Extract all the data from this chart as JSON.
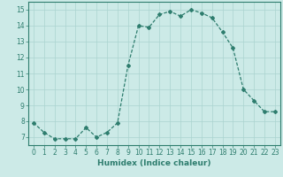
{
  "x": [
    0,
    1,
    2,
    3,
    4,
    5,
    6,
    7,
    8,
    9,
    10,
    11,
    12,
    13,
    14,
    15,
    16,
    17,
    18,
    19,
    20,
    21,
    22,
    23
  ],
  "y": [
    7.9,
    7.3,
    6.9,
    6.9,
    6.9,
    7.6,
    7.0,
    7.3,
    7.9,
    11.5,
    14.0,
    13.9,
    14.7,
    14.9,
    14.6,
    15.0,
    14.8,
    14.5,
    13.6,
    12.6,
    10.0,
    9.3,
    8.6,
    8.6
  ],
  "line_color": "#2e7d6e",
  "marker": "D",
  "marker_size": 2.0,
  "bg_color": "#cceae7",
  "grid_color": "#aad4d0",
  "xlabel": "Humidex (Indice chaleur)",
  "xlim": [
    -0.5,
    23.5
  ],
  "ylim": [
    6.5,
    15.5
  ],
  "yticks": [
    7,
    8,
    9,
    10,
    11,
    12,
    13,
    14,
    15
  ],
  "xticks": [
    0,
    1,
    2,
    3,
    4,
    5,
    6,
    7,
    8,
    9,
    10,
    11,
    12,
    13,
    14,
    15,
    16,
    17,
    18,
    19,
    20,
    21,
    22,
    23
  ],
  "tick_fontsize": 5.5,
  "label_fontsize": 6.5
}
